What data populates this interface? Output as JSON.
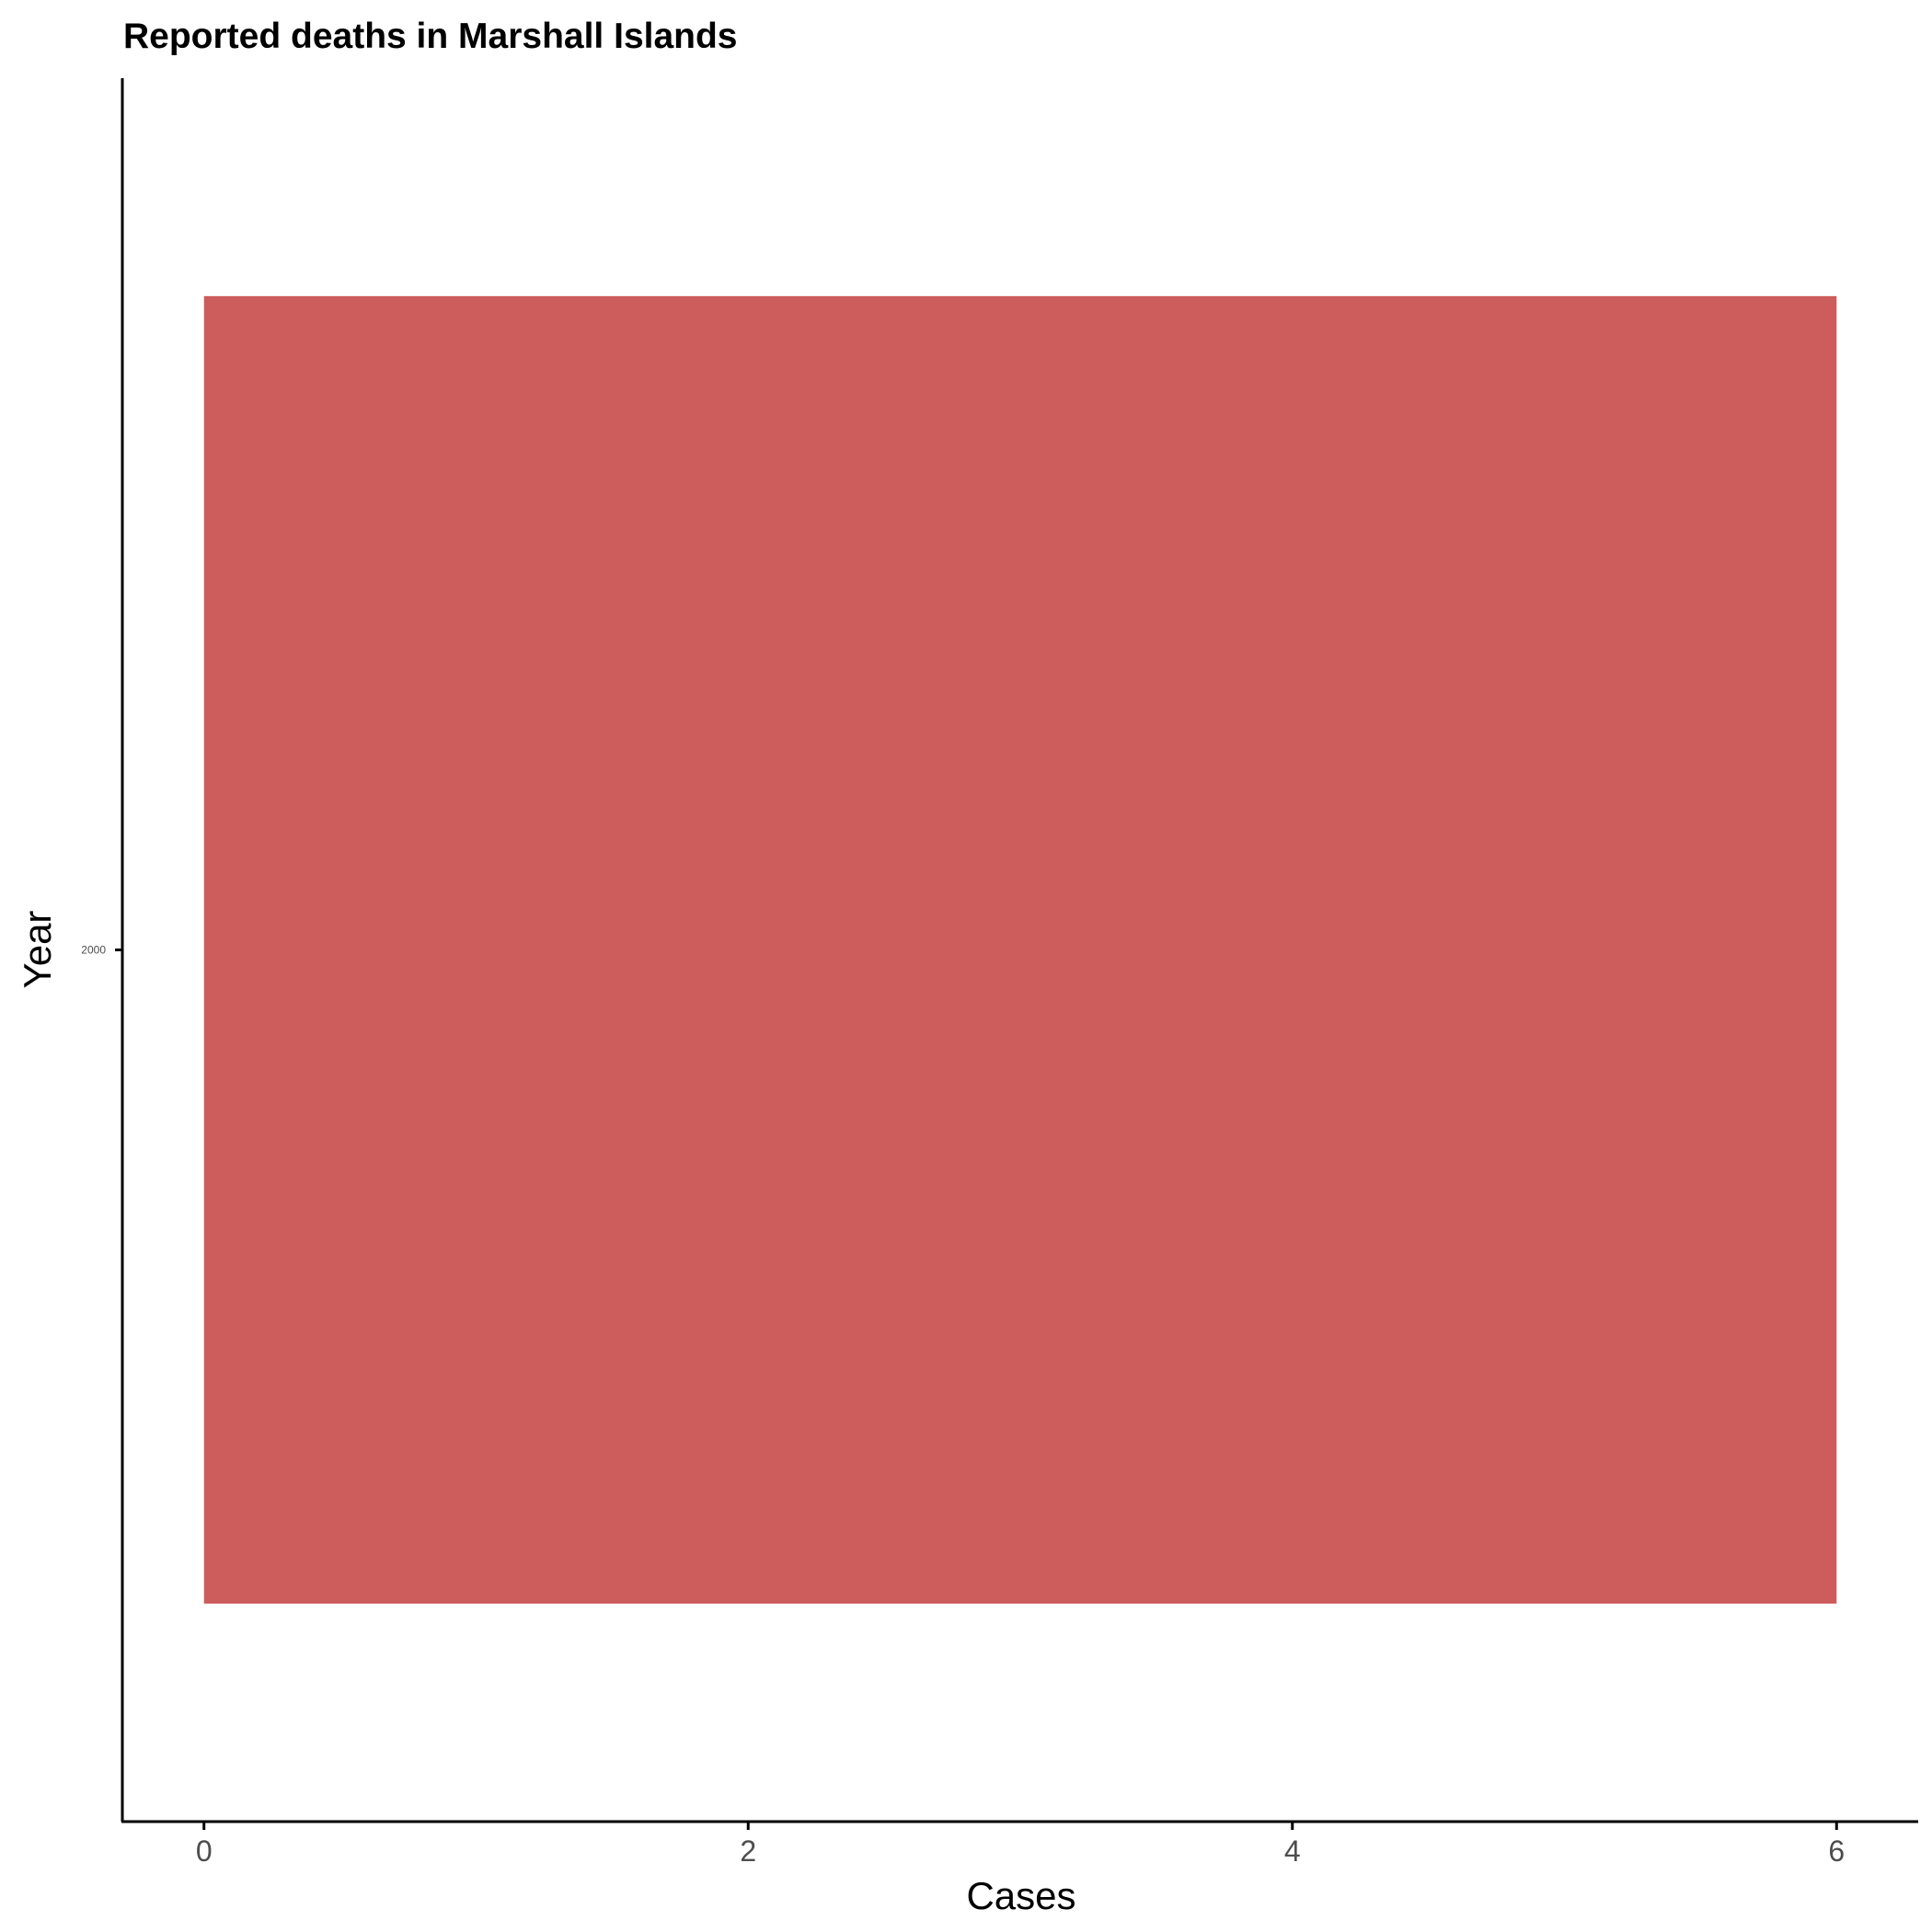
{
  "chart_data": {
    "type": "bar",
    "orientation": "horizontal",
    "title": "Reported deaths in Marshall Islands",
    "xlabel": "Cases",
    "ylabel": "Year",
    "categories": [
      "2000"
    ],
    "values": [
      6
    ],
    "xlim": [
      -0.3,
      6.3
    ],
    "x_ticks": [
      "0",
      "2",
      "4",
      "6"
    ],
    "grid": false,
    "legend": "none",
    "bar_color": "#cd5c5c"
  }
}
